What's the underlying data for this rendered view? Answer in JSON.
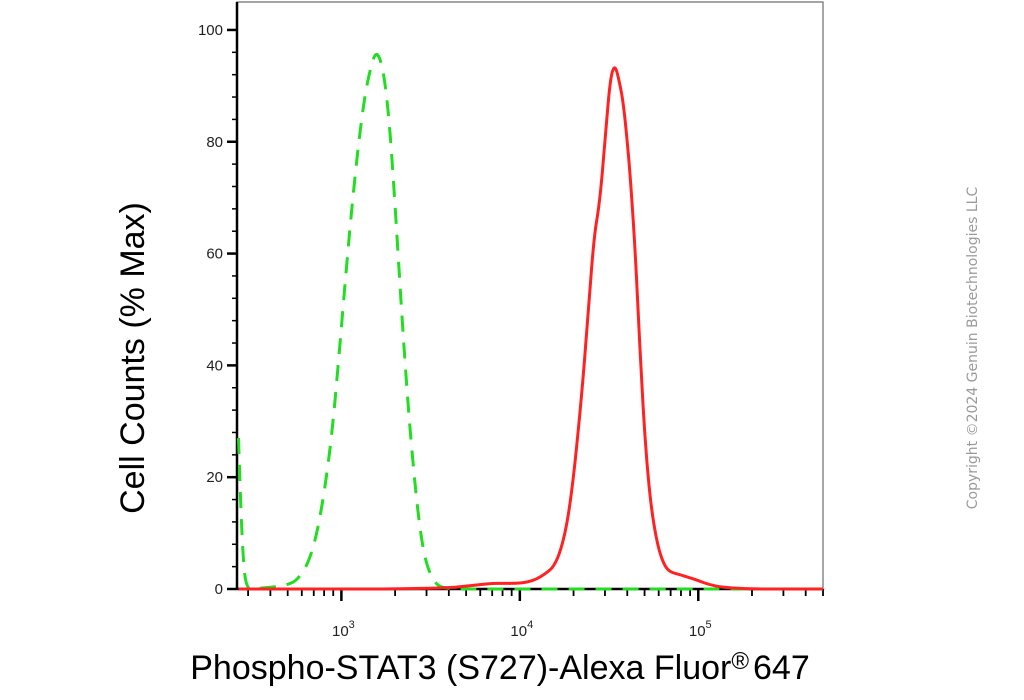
{
  "chart_data": {
    "type": "line",
    "title": "",
    "xlabel": "Phospho-STAT3 (S727)-Alexa Fluor",
    "xlabel_superscript": "®",
    "xlabel_suffix": "647",
    "ylabel": "Cell Counts (% Max)",
    "xscale": "log",
    "xlim": [
      260,
      500000
    ],
    "ylim": [
      0,
      105
    ],
    "y_ticks": [
      0,
      20,
      40,
      60,
      80,
      100
    ],
    "x_ticks": [
      {
        "base": "10",
        "exp": "3"
      },
      {
        "base": "10",
        "exp": "4"
      },
      {
        "base": "10",
        "exp": "5"
      }
    ],
    "grid": false,
    "legend": "none",
    "series": [
      {
        "style": "dashed",
        "color": "#22dd22",
        "x": [
          265,
          275,
          285,
          295,
          310,
          330,
          360,
          400,
          450,
          500,
          560,
          640,
          720,
          800,
          880,
          960,
          1050,
          1150,
          1250,
          1350,
          1450,
          1550,
          1650,
          1750,
          1850,
          1950,
          2050,
          2200,
          2400,
          2650,
          2900,
          3200,
          3500,
          3800,
          4300,
          5000,
          6000,
          10000,
          20000,
          40000,
          80000,
          150000,
          300000,
          500000
        ],
        "y": [
          27,
          12,
          3,
          0.5,
          0,
          0,
          0.2,
          0.3,
          0.5,
          0.8,
          1.5,
          4,
          9,
          17,
          27,
          40,
          55,
          69,
          80,
          88,
          93,
          96,
          95,
          91,
          84,
          74,
          63,
          47,
          30,
          15,
          6,
          2,
          0.5,
          0.2,
          0,
          0,
          0,
          0,
          0,
          0,
          0,
          0,
          0,
          0
        ]
      },
      {
        "style": "solid",
        "color": "#ff2222",
        "x": [
          265,
          500,
          1000,
          2000,
          4000,
          5000,
          6000,
          7000,
          8000,
          9500,
          11000,
          12500,
          14000,
          15500,
          17000,
          18500,
          20000,
          22000,
          24000,
          26000,
          28000,
          30000,
          32000,
          34000,
          36000,
          38000,
          40000,
          42000,
          44000,
          46000,
          48000,
          50000,
          53000,
          56000,
          60000,
          65000,
          70000,
          80000,
          90000,
          100000,
          115000,
          130000,
          150000,
          200000,
          300000,
          500000
        ],
        "y": [
          0,
          0,
          0,
          0,
          0.2,
          0.5,
          0.8,
          1,
          1,
          1,
          1.2,
          1.8,
          2.8,
          4,
          7,
          12,
          20,
          33,
          48,
          63,
          69,
          80,
          91,
          94,
          91,
          87,
          80,
          72,
          62,
          50,
          38,
          28,
          18,
          12,
          7,
          4,
          3,
          2.5,
          2,
          1.5,
          0.8,
          0.4,
          0.2,
          0,
          0,
          0
        ]
      }
    ]
  },
  "watermark": "Copyright ©2024 Genuin Biotechnologies LLC"
}
